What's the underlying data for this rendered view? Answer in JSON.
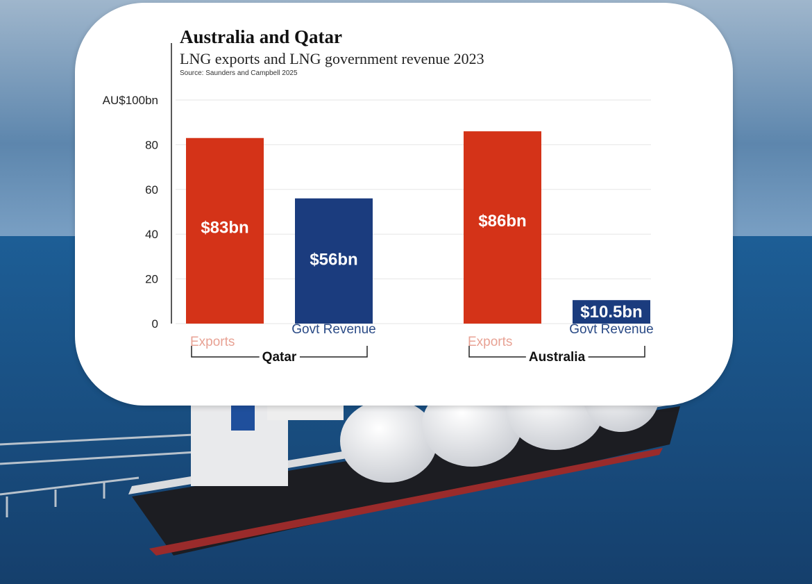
{
  "colors": {
    "exports": "#d43318",
    "revenue": "#1b3c7e",
    "exports_label": "#e8a294",
    "revenue_label": "#2a4a86",
    "grid": "#e6e6e6",
    "axis": "#222222"
  },
  "chart_data": {
    "type": "bar",
    "title": "Australia and Qatar",
    "subtitle": "LNG exports and LNG government revenue 2023",
    "source": "Source: Saunders and Campbell 2025",
    "ylabel_top": "AU$100bn",
    "ylim": [
      0,
      100
    ],
    "yticks": [
      0,
      20,
      40,
      60,
      80
    ],
    "grid": true,
    "groups": [
      {
        "name": "Qatar",
        "bars": [
          {
            "category": "Exports",
            "value": 83,
            "label": "$83bn",
            "series": "exports"
          },
          {
            "category": "Govt Revenue",
            "value": 56,
            "label": "$56bn",
            "series": "revenue"
          }
        ]
      },
      {
        "name": "Australia",
        "bars": [
          {
            "category": "Exports",
            "value": 86,
            "label": "$86bn",
            "series": "exports"
          },
          {
            "category": "Govt Revenue",
            "value": 10.5,
            "label": "$10.5bn",
            "series": "revenue"
          }
        ]
      }
    ]
  }
}
